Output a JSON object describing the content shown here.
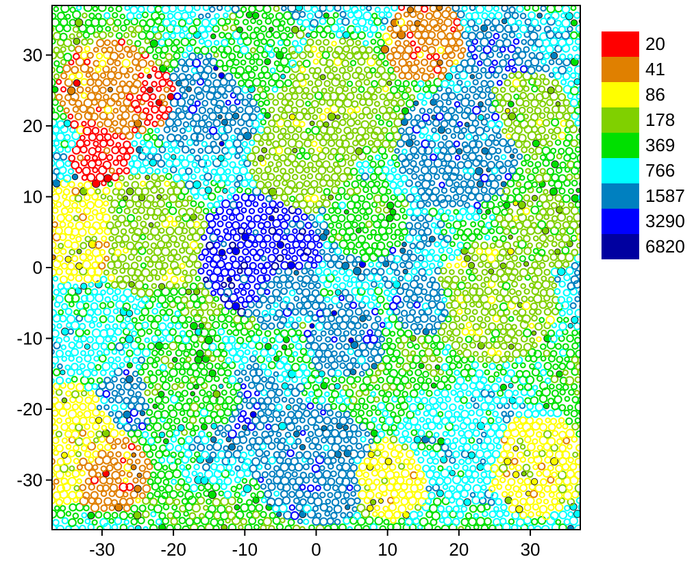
{
  "chart_data": {
    "type": "scatter",
    "title": "",
    "xlabel": "",
    "ylabel": "",
    "xlim": [
      -37,
      37
    ],
    "ylim": [
      -37,
      37
    ],
    "xticks": [
      -30,
      -20,
      -10,
      0,
      10,
      20,
      30
    ],
    "yticks": [
      30,
      20,
      10,
      0,
      -10,
      -20,
      -30
    ],
    "grid": false,
    "legend": {
      "placement": "right",
      "entries": [
        {
          "label": "20",
          "color": "#ff0000"
        },
        {
          "label": "41",
          "color": "#e08000"
        },
        {
          "label": "86",
          "color": "#ffff00"
        },
        {
          "label": "178",
          "color": "#80d000"
        },
        {
          "label": "369",
          "color": "#00e000"
        },
        {
          "label": "766",
          "color": "#00ffff"
        },
        {
          "label": "1587",
          "color": "#0080c0"
        },
        {
          "label": "3290",
          "color": "#0000ff"
        },
        {
          "label": "6820",
          "color": "#0000a0"
        }
      ]
    },
    "marker": "ring",
    "point_spacing": 1.1,
    "clusters": [
      {
        "x": -29,
        "y": 25,
        "radius": 5,
        "level": 1
      },
      {
        "x": -23,
        "y": 24,
        "radius": 3,
        "level": 0
      },
      {
        "x": -30,
        "y": 16,
        "radius": 3,
        "level": 0
      },
      {
        "x": -33,
        "y": 5,
        "radius": 5,
        "level": 2
      },
      {
        "x": -35,
        "y": -25,
        "radius": 6,
        "level": 2
      },
      {
        "x": -29,
        "y": -29,
        "radius": 4,
        "level": 1
      },
      {
        "x": -8,
        "y": 2,
        "radius": 6,
        "level": 7
      },
      {
        "x": -5,
        "y": -3,
        "radius": 4,
        "level": 6
      },
      {
        "x": 20,
        "y": 17,
        "radius": 6,
        "level": 6
      },
      {
        "x": 0,
        "y": -28,
        "radius": 6,
        "level": 6
      },
      {
        "x": 20,
        "y": -25,
        "radius": 5,
        "level": 5
      },
      {
        "x": 15,
        "y": 32,
        "radius": 4,
        "level": 1
      },
      {
        "x": -27,
        "y": -19,
        "radius": 3,
        "level": 6
      },
      {
        "x": 4,
        "y": -10,
        "radius": 4,
        "level": 6
      },
      {
        "x": 15,
        "y": -5,
        "radius": 3,
        "level": 6
      },
      {
        "x": 31,
        "y": -28,
        "radius": 5,
        "level": 2
      },
      {
        "x": 32,
        "y": 5,
        "radius": 4,
        "level": 3
      },
      {
        "x": 7,
        "y": 7,
        "radius": 4,
        "level": 4
      },
      {
        "x": -15,
        "y": 23,
        "radius": 5,
        "level": 6
      },
      {
        "x": 10,
        "y": -30,
        "radius": 4,
        "level": 2
      },
      {
        "x": 30,
        "y": 22,
        "radius": 4,
        "level": 3
      },
      {
        "x": -24,
        "y": 5,
        "radius": 6,
        "level": 3
      },
      {
        "x": -18,
        "y": -17,
        "radius": 5,
        "level": 4
      },
      {
        "x": 25,
        "y": -5,
        "radius": 6,
        "level": 3
      },
      {
        "x": 2,
        "y": 24,
        "radius": 6,
        "level": 3
      },
      {
        "x": -8,
        "y": 30,
        "radius": 5,
        "level": 4
      },
      {
        "x": -2,
        "y": 15,
        "radius": 5,
        "level": 3
      }
    ]
  }
}
